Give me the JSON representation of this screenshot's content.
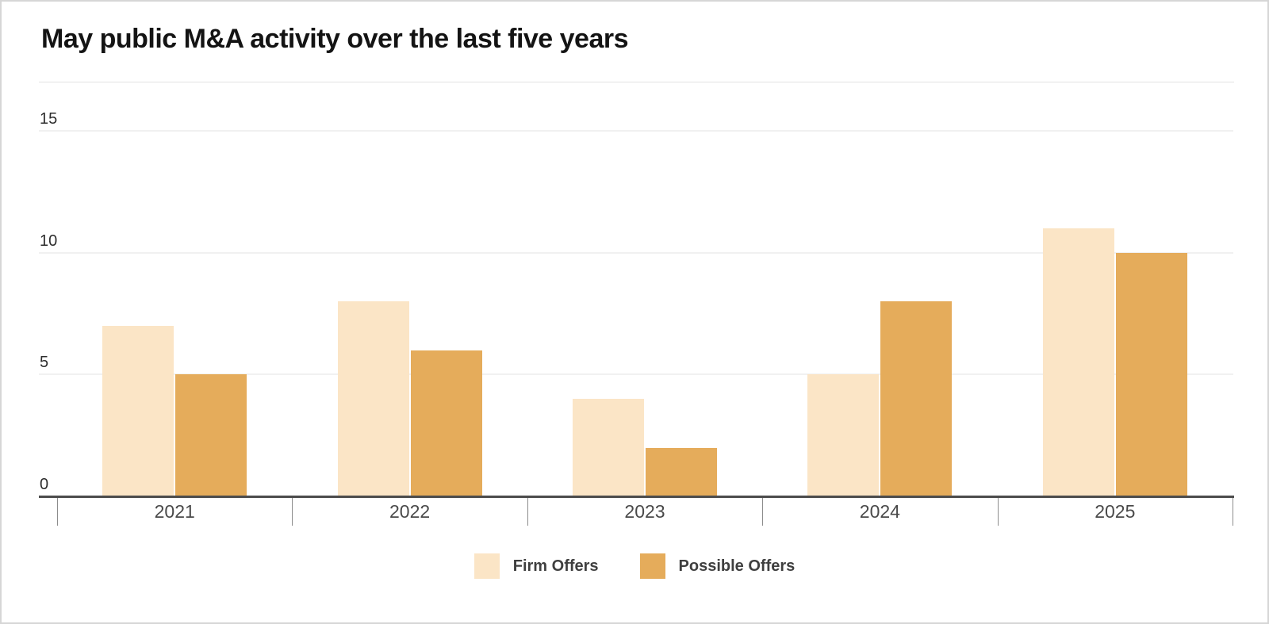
{
  "chart_data": {
    "type": "bar",
    "title": "May public M&A activity over the last five years",
    "categories": [
      "2021",
      "2022",
      "2023",
      "2024",
      "2025"
    ],
    "series": [
      {
        "name": "Firm Offers",
        "color": "#FBE5C6",
        "values": [
          7,
          8,
          4,
          5,
          11
        ]
      },
      {
        "name": "Possible Offers",
        "color": "#E5AC5B",
        "values": [
          5,
          6,
          2,
          8,
          10
        ]
      }
    ],
    "xlabel": "",
    "ylabel": "",
    "ylim": [
      0,
      15
    ],
    "yticks": [
      0,
      5,
      10,
      15
    ],
    "grid": true,
    "legend_position": "bottom",
    "axis_color": "#4c4c4c",
    "gridline_color": "#f1f1f1"
  }
}
